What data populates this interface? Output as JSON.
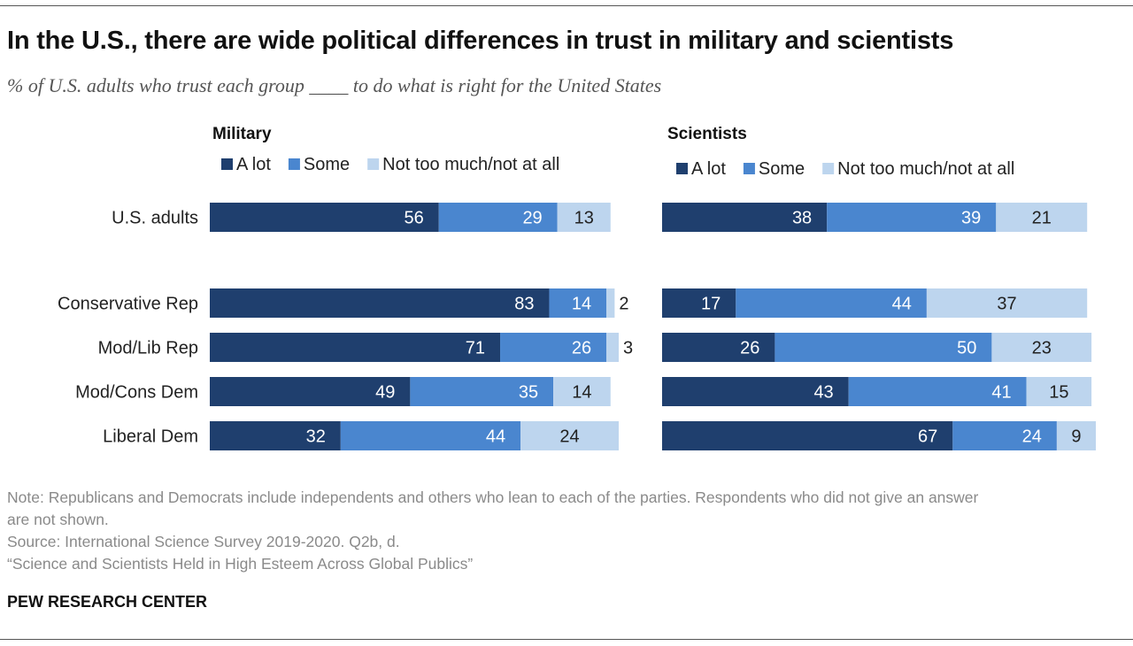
{
  "title": "In the U.S., there are wide political differences in trust in military and scientists",
  "subtitle": "% of U.S. adults who trust each group ____ to do what is right for the United States",
  "colors": {
    "a_lot": "#1f3f6e",
    "some": "#4a86cf",
    "not_much": "#bdd5ee",
    "label_light": "#ffffff",
    "label_dark": "#222222"
  },
  "chart_data": [
    {
      "type": "bar",
      "orientation": "horizontal",
      "stacked": true,
      "title": "Military",
      "categories": [
        "U.S. adults",
        "Conservative Rep",
        "Mod/Lib Rep",
        "Mod/Cons Dem",
        "Liberal Dem"
      ],
      "series": [
        {
          "name": "A lot",
          "values": [
            56,
            83,
            71,
            49,
            32
          ]
        },
        {
          "name": "Some",
          "values": [
            29,
            14,
            26,
            35,
            44
          ]
        },
        {
          "name": "Not too much/not at all",
          "values": [
            13,
            2,
            3,
            14,
            24
          ]
        }
      ],
      "xlim": [
        0,
        100
      ],
      "legend": "top"
    },
    {
      "type": "bar",
      "orientation": "horizontal",
      "stacked": true,
      "title": "Scientists",
      "categories": [
        "U.S. adults",
        "Conservative Rep",
        "Mod/Lib Rep",
        "Mod/Cons Dem",
        "Liberal Dem"
      ],
      "series": [
        {
          "name": "A lot",
          "values": [
            38,
            17,
            26,
            43,
            67
          ]
        },
        {
          "name": "Some",
          "values": [
            39,
            44,
            50,
            41,
            24
          ]
        },
        {
          "name": "Not too much/not at all",
          "values": [
            21,
            37,
            23,
            15,
            9
          ]
        }
      ],
      "xlim": [
        0,
        100
      ],
      "legend": "top"
    }
  ],
  "notes": {
    "note_line1": "Note: Republicans and Democrats include independents and others who lean to each of the parties. Respondents who did not give an answer",
    "note_line2": "are not shown.",
    "source": "Source: International Science Survey 2019-2020. Q2b, d.",
    "report": "“Science and Scientists Held in High Esteem Across Global Publics”"
  },
  "brand": "PEW RESEARCH CENTER"
}
